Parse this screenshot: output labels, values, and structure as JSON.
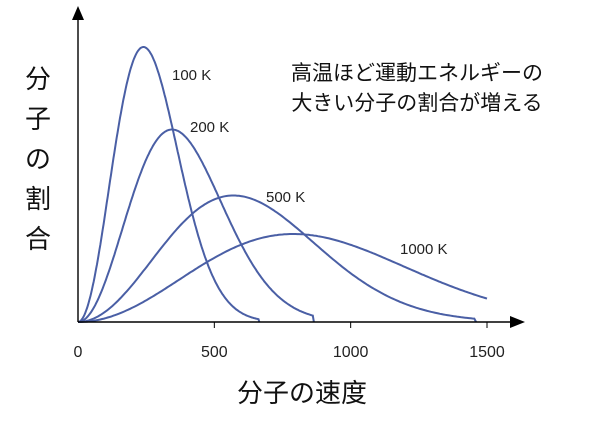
{
  "chart_data": {
    "type": "line",
    "title": "",
    "xlabel": "分子の速度",
    "ylabel": "分子の割合",
    "xlim": [
      0,
      1600
    ],
    "ylim": [
      0,
      1.0
    ],
    "x_ticks": [
      0,
      500,
      1000,
      1500
    ],
    "y_ticks_shown": false,
    "grid": false,
    "legend": "none",
    "line_color": "#4a5fa5",
    "annotation": [
      "高温ほど運動エネルギーの",
      "大きい分子の割合が増える"
    ],
    "series": [
      {
        "name": "100 K",
        "peak_speed": 240,
        "peak_value": 1.0,
        "end_speed": 665
      },
      {
        "name": "200 K",
        "peak_speed": 345,
        "peak_value": 0.7,
        "end_speed": 865
      },
      {
        "name": "500 K",
        "peak_speed": 570,
        "peak_value": 0.46,
        "end_speed": 1460
      },
      {
        "name": "1000 K",
        "peak_speed": 790,
        "peak_value": 0.32,
        "end_speed": 1500,
        "end_value": 0.09
      }
    ]
  }
}
